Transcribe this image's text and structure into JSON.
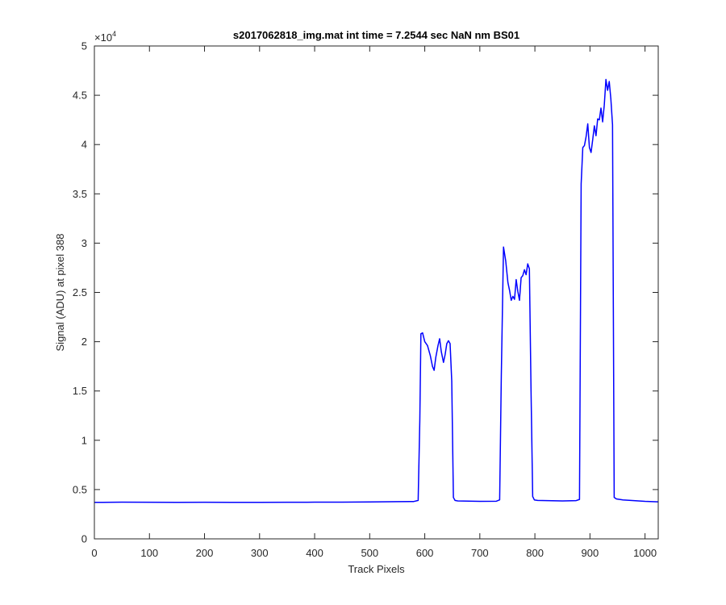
{
  "chart_data": {
    "type": "line",
    "title": "s2017062818_img.mat int time = 7.2544 sec  NaN nm BS01",
    "xlabel": "Track Pixels",
    "ylabel": "Signal (ADU) at pixel 388",
    "xlim": [
      0,
      1024
    ],
    "ylim": [
      0,
      50000
    ],
    "x_ticks": [
      0,
      100,
      200,
      300,
      400,
      500,
      600,
      700,
      800,
      900,
      1000
    ],
    "x_tick_labels": [
      "0",
      "100",
      "200",
      "300",
      "400",
      "500",
      "600",
      "700",
      "800",
      "900",
      "1000"
    ],
    "y_ticks": [
      0,
      5000,
      10000,
      15000,
      20000,
      25000,
      30000,
      35000,
      40000,
      45000,
      50000
    ],
    "y_tick_labels": [
      "0",
      "0.5",
      "1",
      "1.5",
      "2",
      "2.5",
      "3",
      "3.5",
      "4",
      "4.5",
      "5"
    ],
    "y_exponent_base": "×10",
    "y_exponent_power": "4",
    "grid": false,
    "series": [
      {
        "color": "#0000ff",
        "x": [
          0,
          50,
          100,
          150,
          200,
          250,
          300,
          350,
          400,
          450,
          500,
          550,
          580,
          588,
          591,
          593,
          596,
          600,
          605,
          610,
          614,
          617,
          620,
          624,
          627,
          630,
          634,
          637,
          640,
          643,
          646,
          649,
          652,
          655,
          660,
          700,
          730,
          736,
          739,
          743,
          747,
          751,
          754,
          757,
          760,
          763,
          766,
          769,
          772,
          775,
          778,
          781,
          784,
          787,
          790,
          793,
          796,
          799,
          805,
          850,
          875,
          881,
          884,
          887,
          890,
          893,
          896,
          899,
          902,
          905,
          908,
          911,
          914,
          917,
          920,
          923,
          926,
          929,
          932,
          935,
          938,
          941,
          944,
          948,
          960,
          1000,
          1024
        ],
        "y": [
          3700,
          3720,
          3710,
          3700,
          3710,
          3700,
          3700,
          3710,
          3720,
          3720,
          3740,
          3770,
          3790,
          3900,
          12000,
          20800,
          20900,
          20000,
          19600,
          18600,
          17500,
          17100,
          18400,
          19600,
          20300,
          19000,
          17900,
          18700,
          19800,
          20100,
          19800,
          16000,
          4200,
          3900,
          3850,
          3800,
          3820,
          3950,
          16500,
          29600,
          28200,
          26000,
          25200,
          24200,
          24600,
          24300,
          26300,
          25100,
          24200,
          26500,
          26700,
          27300,
          26800,
          27900,
          27400,
          15000,
          4300,
          3950,
          3900,
          3850,
          3880,
          4000,
          36000,
          39700,
          39900,
          40800,
          42100,
          39700,
          39200,
          40500,
          41900,
          40900,
          42600,
          42500,
          43700,
          42300,
          44000,
          46600,
          45500,
          46400,
          44600,
          42000,
          4200,
          4050,
          3950,
          3800,
          3750
        ]
      }
    ]
  }
}
